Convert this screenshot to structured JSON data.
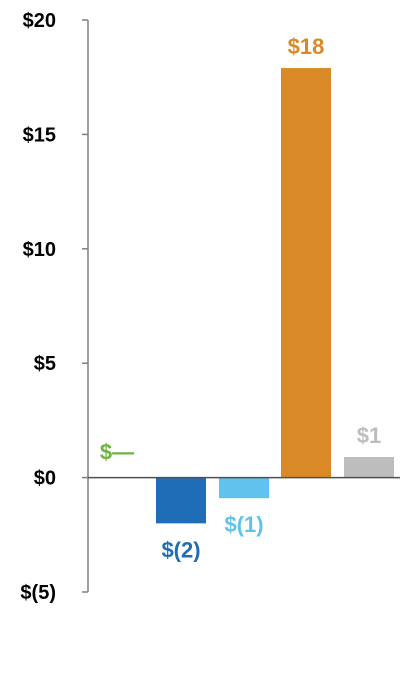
{
  "chart_data": {
    "type": "bar",
    "title": "",
    "xlabel": "",
    "ylabel": "",
    "ylim": [
      -5,
      20
    ],
    "yticks": [
      20,
      15,
      10,
      5,
      0,
      -5
    ],
    "ytick_labels": [
      "$20",
      "$15",
      "$10",
      "$5",
      "$0",
      "$(5)"
    ],
    "grid": false,
    "legend": "none",
    "categories": [
      "",
      "",
      "",
      "",
      ""
    ],
    "values": [
      0,
      -2,
      -1,
      18,
      1
    ],
    "value_labels": [
      "$—",
      "$(2)",
      "$(1)",
      "$18",
      "$1"
    ],
    "colors": [
      "#6db33f",
      "#1f6db6",
      "#5fc3ee",
      "#d98a26",
      "#bdbdbd"
    ],
    "bar_actual_heights": [
      0,
      -2.0,
      -0.9,
      17.9,
      0.9
    ]
  }
}
